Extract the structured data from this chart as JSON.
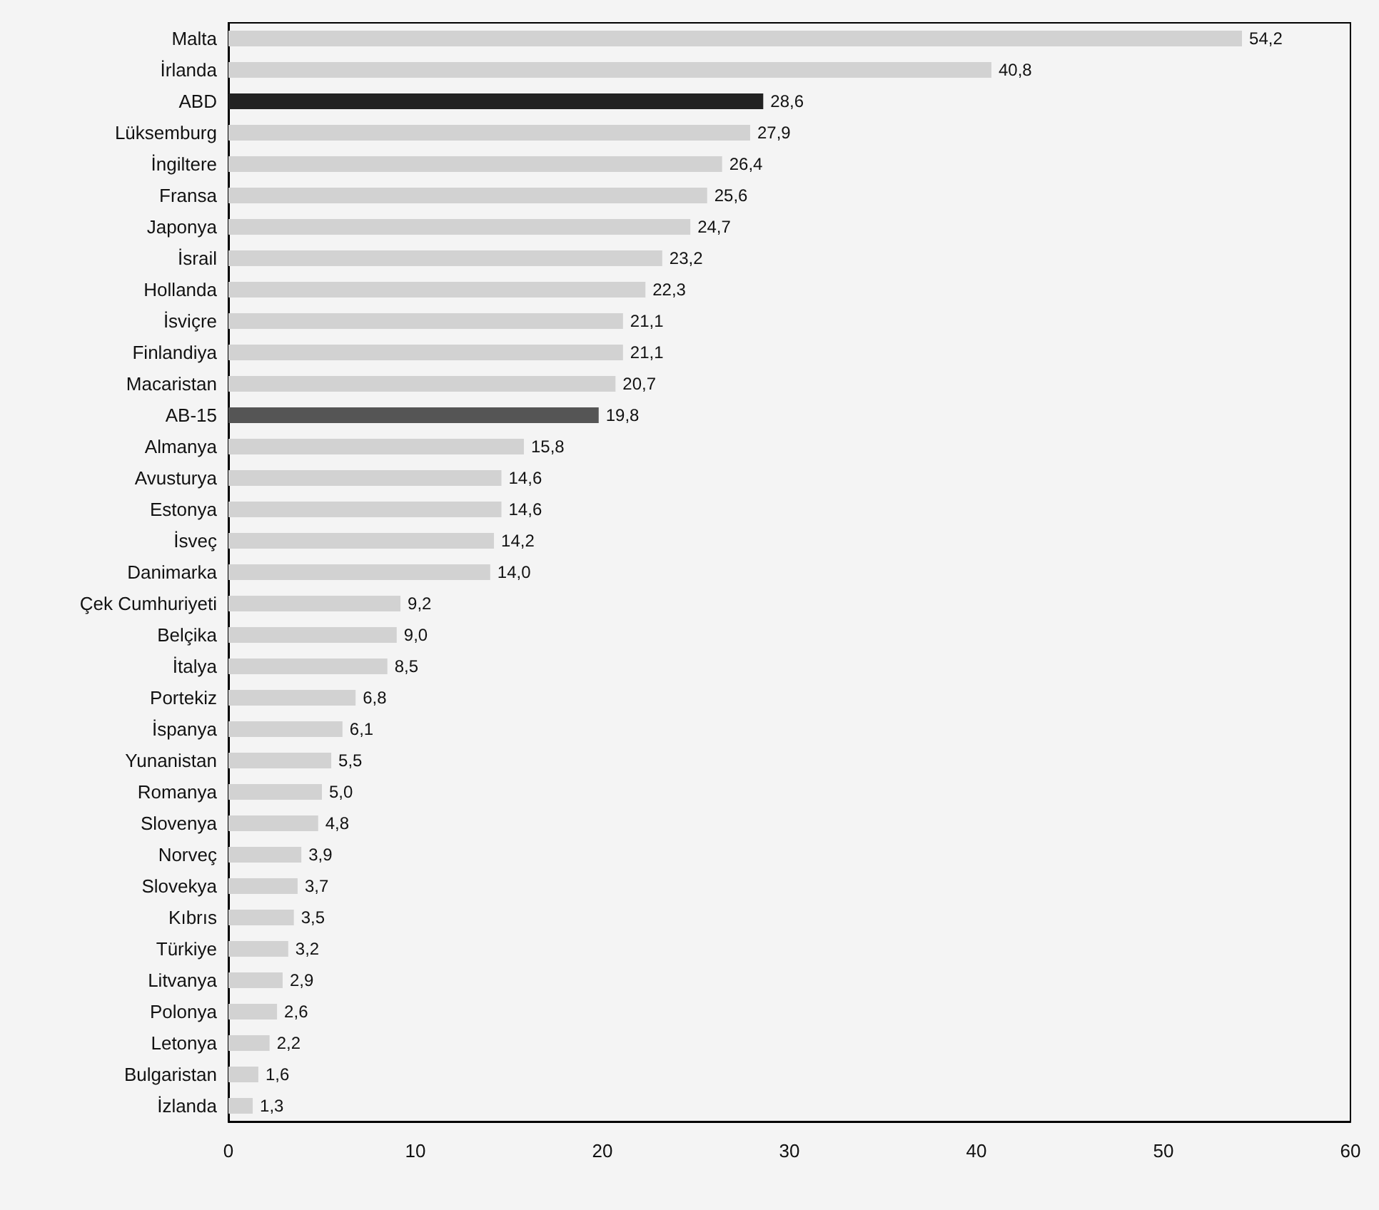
{
  "chart_data": {
    "type": "bar",
    "orientation": "horizontal",
    "categories": [
      "Malta",
      "İrlanda",
      "ABD",
      "Lüksemburg",
      "İngiltere",
      "Fransa",
      "Japonya",
      "İsrail",
      "Hollanda",
      "İsviçre",
      "Finlandiya",
      "Macaristan",
      "AB-15",
      "Almanya",
      "Avusturya",
      "Estonya",
      "İsveç",
      "Danimarka",
      "Çek Cumhuriyeti",
      "Belçika",
      "İtalya",
      "Portekiz",
      "İspanya",
      "Yunanistan",
      "Romanya",
      "Slovenya",
      "Norveç",
      "Slovekya",
      "Kıbrıs",
      "Türkiye",
      "Litvanya",
      "Polonya",
      "Letonya",
      "Bulgaristan",
      "İzlanda"
    ],
    "values": [
      54.2,
      40.8,
      28.6,
      27.9,
      26.4,
      25.6,
      24.7,
      23.2,
      22.3,
      21.1,
      21.1,
      20.7,
      19.8,
      15.8,
      14.6,
      14.6,
      14.2,
      14.0,
      9.2,
      9.0,
      8.5,
      6.8,
      6.1,
      5.5,
      5.0,
      4.8,
      3.9,
      3.7,
      3.5,
      3.2,
      2.9,
      2.6,
      2.2,
      1.6,
      1.3
    ],
    "value_labels": [
      "54,2",
      "40,8",
      "28,6",
      "27,9",
      "26,4",
      "25,6",
      "24,7",
      "23,2",
      "22,3",
      "21,1",
      "21,1",
      "20,7",
      "19,8",
      "15,8",
      "14,6",
      "14,6",
      "14,2",
      "14,0",
      "9,2",
      "9,0",
      "8,5",
      "6,8",
      "6,1",
      "5,5",
      "5,0",
      "4,8",
      "3,9",
      "3,7",
      "3,5",
      "3,2",
      "2,9",
      "2,6",
      "2,2",
      "1,6",
      "1,3"
    ],
    "colors": [
      "#d2d2d2",
      "#d2d2d2",
      "#222222",
      "#d2d2d2",
      "#d2d2d2",
      "#d2d2d2",
      "#d2d2d2",
      "#d2d2d2",
      "#d2d2d2",
      "#d2d2d2",
      "#d2d2d2",
      "#d2d2d2",
      "#555555",
      "#d2d2d2",
      "#d2d2d2",
      "#d2d2d2",
      "#d2d2d2",
      "#d2d2d2",
      "#d2d2d2",
      "#d2d2d2",
      "#d2d2d2",
      "#d2d2d2",
      "#d2d2d2",
      "#d2d2d2",
      "#d2d2d2",
      "#d2d2d2",
      "#d2d2d2",
      "#d2d2d2",
      "#d2d2d2",
      "#d2d2d2",
      "#d2d2d2",
      "#d2d2d2",
      "#d2d2d2",
      "#d2d2d2",
      "#d2d2d2"
    ],
    "xlim": [
      0,
      60
    ],
    "xticks": [
      0,
      10,
      20,
      30,
      40,
      50,
      60
    ]
  }
}
